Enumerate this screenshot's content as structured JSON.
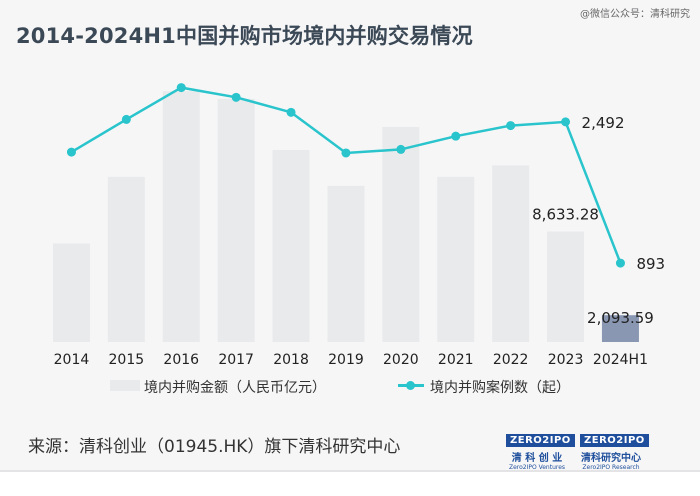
{
  "watermark": "@微信公众号：清科研究",
  "title": "2014-2024H1中国并购市场境内并购交易情况",
  "chart_data": {
    "type": "bar+line",
    "categories": [
      "2014",
      "2015",
      "2016",
      "2017",
      "2018",
      "2019",
      "2020",
      "2021",
      "2022",
      "2023",
      "2024H1"
    ],
    "series": [
      {
        "name": "境内并购金额（人民币亿元）",
        "type": "bar",
        "axis": "left",
        "values": [
          7700,
          12900,
          19600,
          19000,
          15000,
          12200,
          16800,
          12900,
          13800,
          8633.28,
          2093.59
        ],
        "labels": [
          "",
          "",
          "",
          "",
          "",
          "",
          "",
          "",
          "",
          "8,633.28",
          "2,093.59"
        ]
      },
      {
        "name": "境内并购案例数（起）",
        "type": "line",
        "axis": "right",
        "values": [
          2150,
          2520,
          2880,
          2770,
          2600,
          2140,
          2180,
          2330,
          2450,
          2492,
          893
        ],
        "labels": [
          "",
          "",
          "",
          "",
          "",
          "",
          "",
          "",
          "",
          "2,492",
          "893"
        ]
      }
    ],
    "ylim_left": [
      0,
      20000
    ],
    "ylim_right": [
      0,
      3000
    ],
    "grid": false,
    "legend": "bottom",
    "colors": {
      "bar": "#e9eaec",
      "bar_highlight": "#8997b2",
      "line": "#29c4cc"
    }
  },
  "legend": {
    "bar_label": "境内并购金额（人民币亿元）",
    "line_label": "境内并购案例数（起）"
  },
  "source": "来源：清科创业（01945.HK）旗下清科研究中心",
  "logos": [
    {
      "mark": "ZERO2IPO",
      "name_cn": "清 科 创 业",
      "name_en": "Zero2IPO Ventures"
    },
    {
      "mark": "ZERO2IPO",
      "name_cn": "清科研究中心",
      "name_en": "Zero2IPO Research"
    }
  ]
}
